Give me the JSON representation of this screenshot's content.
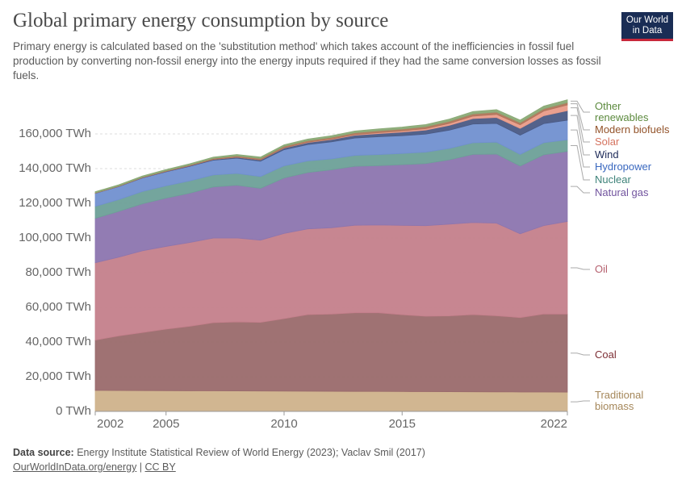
{
  "chart_data": {
    "type": "stacked_area",
    "title": "Global primary energy consumption by source",
    "subtitle": "Primary energy is calculated based on the 'substitution method' which takes account of the inefficiencies in fossil fuel production by converting non-fossil energy into the energy inputs required if they had the same conversion losses as fossil fuels.",
    "logo": "Our World in Data",
    "source_label": "Data source:",
    "source": "Energy Institute Statistical Review of World Energy (2023); Vaclav Smil (2017)",
    "link": "OurWorldInData.org/energy",
    "license": "CC BY",
    "x": [
      2002,
      2003,
      2004,
      2005,
      2006,
      2007,
      2008,
      2009,
      2010,
      2011,
      2012,
      2013,
      2014,
      2015,
      2016,
      2017,
      2018,
      2019,
      2020,
      2021,
      2022
    ],
    "xlim": [
      2002,
      2022
    ],
    "xticks": [
      2002,
      2005,
      2010,
      2015,
      2022
    ],
    "ylim": [
      0,
      180000
    ],
    "yticks": [
      {
        "value": 0,
        "label": "0 TWh"
      },
      {
        "value": 20000,
        "label": "20,000 TWh"
      },
      {
        "value": 40000,
        "label": "40,000 TWh"
      },
      {
        "value": 60000,
        "label": "60,000 TWh"
      },
      {
        "value": 80000,
        "label": "80,000 TWh"
      },
      {
        "value": 100000,
        "label": "100,000 TWh"
      },
      {
        "value": 120000,
        "label": "120,000 TWh"
      },
      {
        "value": 140000,
        "label": "140,000 TWh"
      },
      {
        "value": 160000,
        "label": "160,000 TWh"
      }
    ],
    "grid": true,
    "series": [
      {
        "name": "Traditional biomass",
        "color": "#cfb28b",
        "label_color": "#a5875a",
        "values": [
          12100,
          12050,
          12000,
          11950,
          11900,
          11850,
          11800,
          11750,
          11700,
          11650,
          11600,
          11550,
          11500,
          11450,
          11400,
          11350,
          11300,
          11250,
          11200,
          11150,
          11100
        ]
      },
      {
        "name": "Coal",
        "color": "#9a6a6c",
        "label_color": "#7e2f35",
        "values": [
          29000,
          31500,
          33500,
          35500,
          37200,
          39300,
          39800,
          39600,
          41800,
          44200,
          44500,
          45300,
          45400,
          44300,
          43500,
          43700,
          44500,
          43900,
          42900,
          45000,
          45000
        ]
      },
      {
        "name": "Oil",
        "color": "#c47f8b",
        "label_color": "#b5606e",
        "values": [
          44600,
          45400,
          47100,
          47700,
          48300,
          48800,
          48400,
          47400,
          49100,
          49400,
          49800,
          50500,
          50600,
          51500,
          52200,
          52900,
          53100,
          53400,
          48300,
          51000,
          53400
        ]
      },
      {
        "name": "Natural gas",
        "color": "#8c75af",
        "label_color": "#71539e",
        "values": [
          25600,
          26400,
          27100,
          27800,
          28400,
          29500,
          30400,
          29900,
          32000,
          32500,
          33400,
          34000,
          34200,
          35000,
          35800,
          37100,
          39300,
          39800,
          39100,
          40800,
          40400
        ]
      },
      {
        "name": "Nuclear",
        "color": "#6da098",
        "label_color": "#3f837a",
        "values": [
          6900,
          6800,
          7100,
          7100,
          7100,
          6900,
          6800,
          6800,
          7000,
          6700,
          6300,
          6300,
          6400,
          6500,
          6600,
          6600,
          6700,
          6900,
          6700,
          7000,
          6700
        ]
      },
      {
        "name": "Hydropower",
        "color": "#7190d0",
        "label_color": "#3a68bf",
        "values": [
          7500,
          7500,
          7800,
          8100,
          8400,
          8500,
          8800,
          8800,
          9300,
          9400,
          9800,
          10000,
          10300,
          10200,
          10400,
          10500,
          10800,
          10800,
          11100,
          11000,
          11300
        ]
      },
      {
        "name": "Wind",
        "color": "#4a5a85",
        "label_color": "#1d2a58",
        "values": [
          150,
          180,
          230,
          280,
          350,
          450,
          600,
          750,
          950,
          1180,
          1380,
          1620,
          1810,
          2090,
          2330,
          2790,
          3130,
          3450,
          3860,
          4550,
          5490
        ]
      },
      {
        "name": "Solar",
        "color": "#e99b89",
        "label_color": "#d5735f",
        "values": [
          5,
          8,
          11,
          15,
          20,
          25,
          35,
          55,
          90,
          180,
          270,
          360,
          500,
          640,
          830,
          1130,
          1440,
          1760,
          2130,
          2680,
          3300
        ]
      },
      {
        "name": "Modern biofuels",
        "color": "#b0755a",
        "label_color": "#93532a",
        "values": [
          200,
          230,
          270,
          330,
          420,
          560,
          720,
          800,
          910,
          920,
          940,
          1020,
          1090,
          1110,
          1130,
          1180,
          1270,
          1310,
          1210,
          1290,
          1370
        ]
      },
      {
        "name": "Other renewables",
        "color": "#8aaa76",
        "label_color": "#5c8a3e",
        "values": [
          600,
          620,
          650,
          680,
          700,
          730,
          760,
          800,
          850,
          900,
          960,
          1020,
          1100,
          1170,
          1230,
          1300,
          1370,
          1420,
          1460,
          1560,
          1650
        ]
      }
    ]
  }
}
